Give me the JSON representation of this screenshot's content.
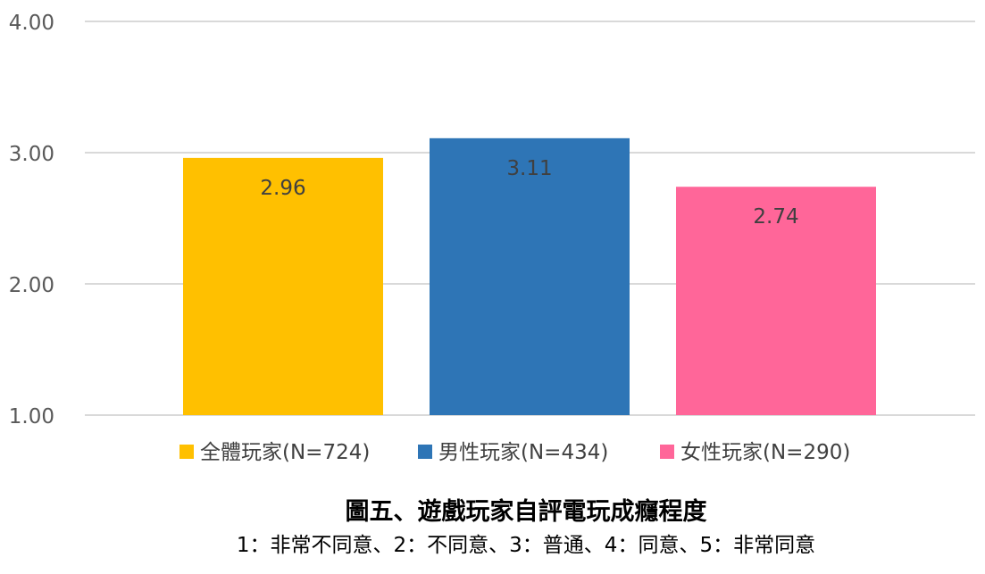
{
  "chart_data": {
    "type": "bar",
    "categories": [
      "全體玩家(N=724)",
      "男性玩家(N=434)",
      "女性玩家(N=290)"
    ],
    "values": [
      2.96,
      3.11,
      2.74
    ],
    "value_labels": [
      "2.96",
      "3.11",
      "2.74"
    ],
    "colors": [
      "#FFC000",
      "#2E75B6",
      "#FF6699"
    ],
    "ylim": [
      1.0,
      4.0
    ],
    "yticks": [
      "1.00",
      "2.00",
      "3.00",
      "4.00"
    ],
    "ytick_values": [
      1.0,
      2.0,
      3.0,
      4.0
    ],
    "grid": true,
    "legend_position": "bottom",
    "title": "圖五、遊戲玩家自評電玩成癮程度",
    "subtitle": "1：非常不同意、2：不同意、3：普通、4：同意、5：非常同意",
    "xlabel": "",
    "ylabel": ""
  }
}
